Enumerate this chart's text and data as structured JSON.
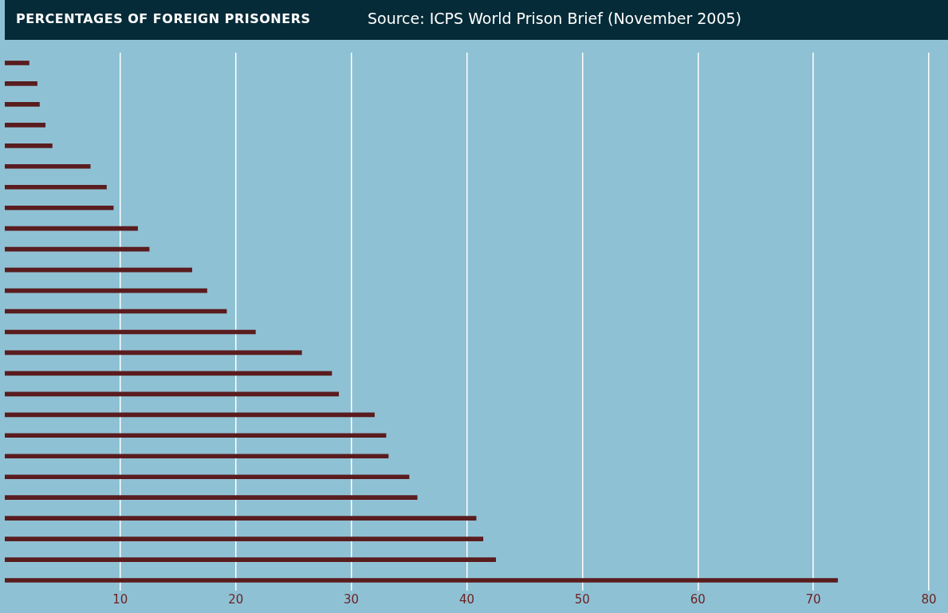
{
  "chart_data": {
    "type": "bar",
    "orientation": "horizontal",
    "title": "PERCENTAGES OF FOREIGN PRISONERS",
    "annotations": [
      "Source: ICPS World Prison Brief (November 2005)"
    ],
    "categories": [
      null,
      null,
      null,
      null,
      null,
      null,
      null,
      null,
      null,
      null,
      null,
      null,
      null,
      null,
      null,
      null,
      null,
      null,
      null,
      null,
      null,
      null,
      null,
      null,
      null,
      null
    ],
    "values": [
      2.1,
      2.8,
      3.0,
      3.5,
      4.1,
      7.4,
      8.8,
      9.4,
      11.5,
      12.5,
      16.2,
      17.5,
      19.2,
      21.7,
      25.7,
      28.3,
      28.9,
      32.0,
      33.0,
      33.2,
      35.0,
      35.7,
      40.8,
      41.4,
      42.5,
      72.1
    ],
    "color": "#5a1c1e",
    "xlim": [
      0,
      80
    ],
    "xticks": [
      10,
      20,
      30,
      40,
      50,
      60,
      70,
      80
    ],
    "grid": "x",
    "tick_labels": "x"
  }
}
